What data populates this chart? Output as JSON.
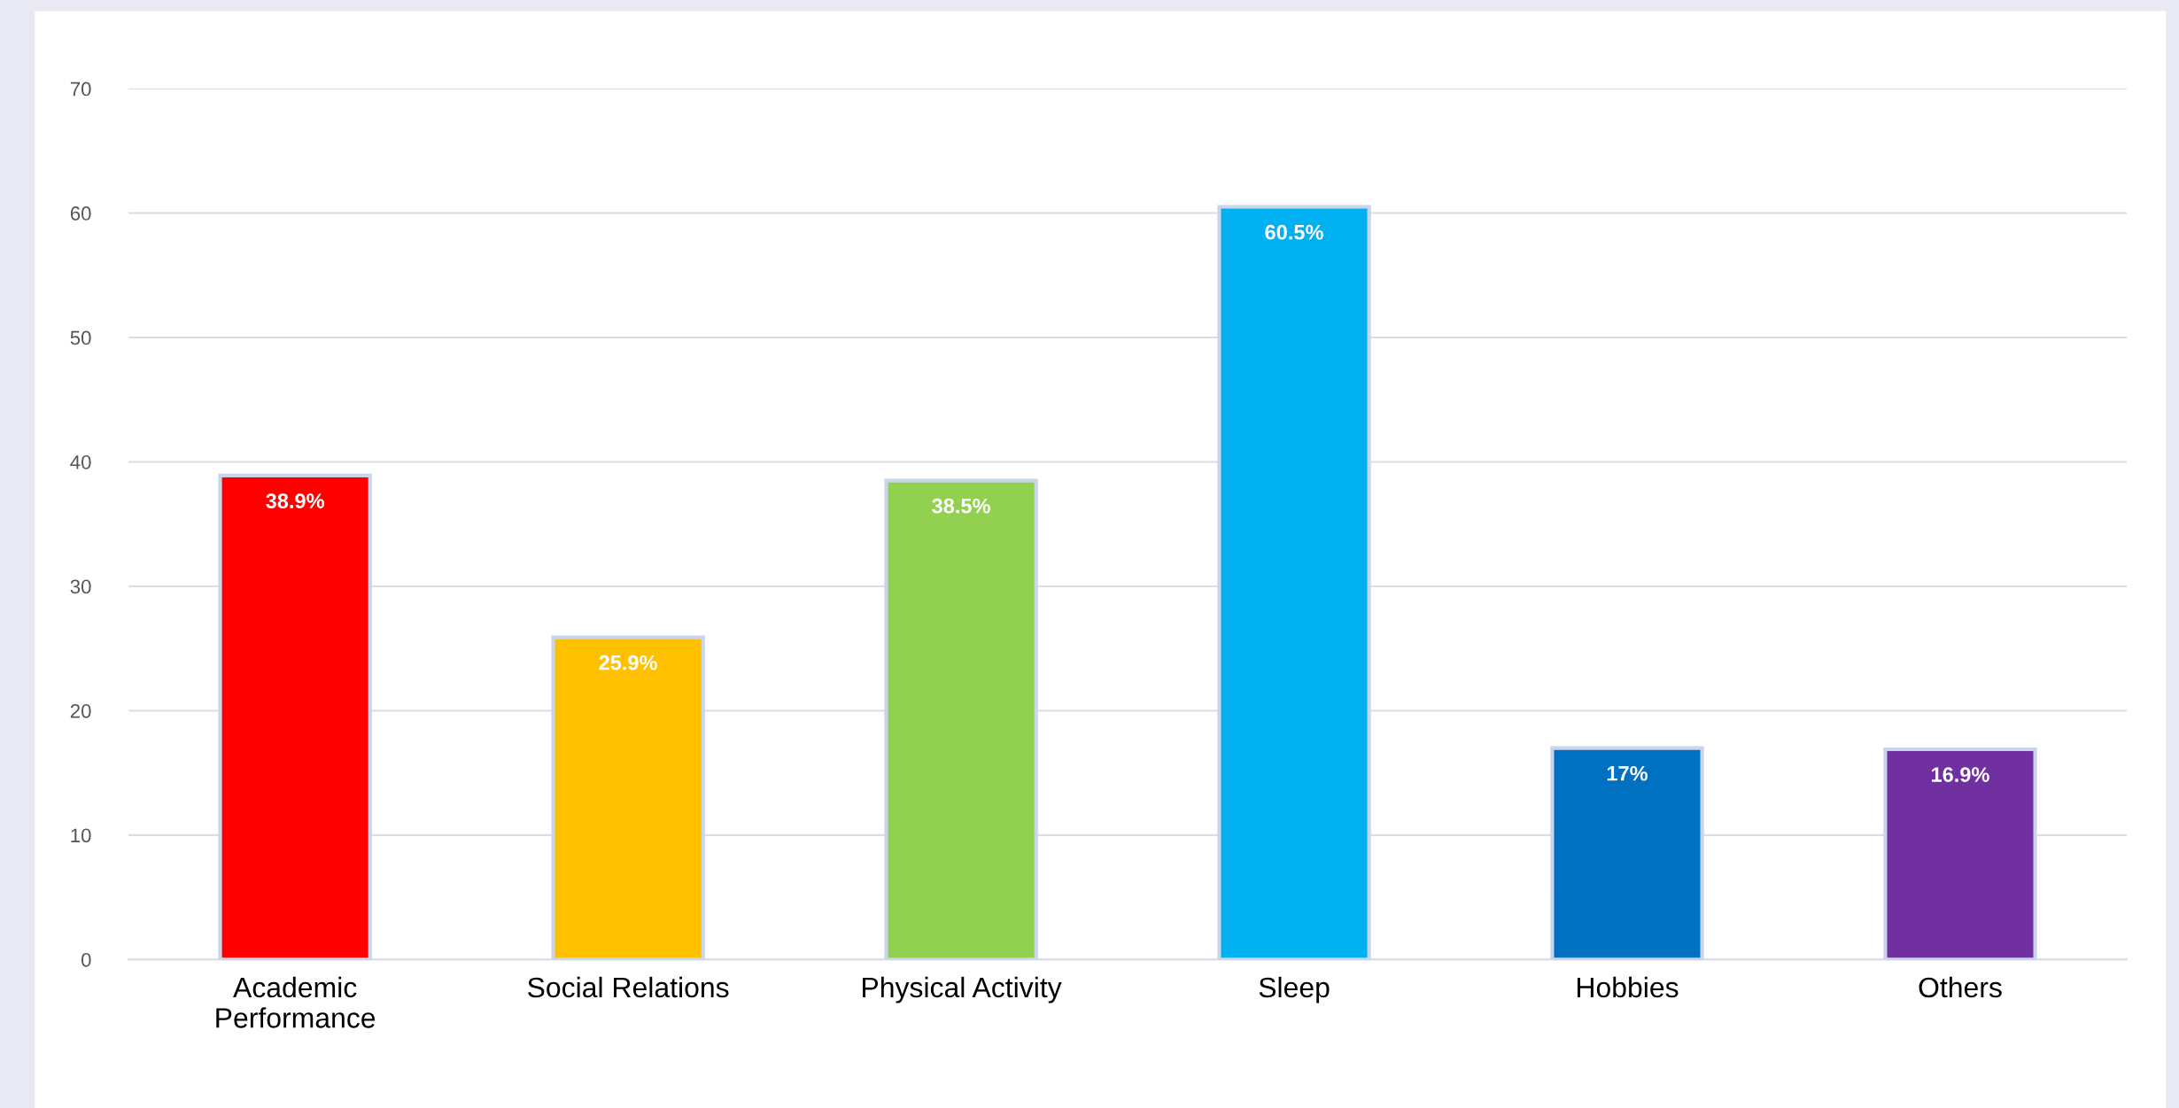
{
  "chart_data": {
    "type": "bar",
    "categories": [
      "Academic Performance",
      "Social Relations",
      "Physical Activity",
      "Sleep",
      "Hobbies",
      "Others"
    ],
    "values": [
      38.9,
      25.9,
      38.5,
      60.5,
      17,
      16.9
    ],
    "colors": [
      "#ff0000",
      "#ffc000",
      "#92d050",
      "#00b0f0",
      "#0070c0",
      "#7030a0"
    ],
    "value_labels": [
      "38.9%",
      "25.9%",
      "38.5%",
      "60.5%",
      "17%",
      "16.9%"
    ],
    "ylim": [
      0,
      70
    ],
    "yticks": [
      0,
      10,
      20,
      30,
      40,
      50,
      60,
      70
    ],
    "grid": "y",
    "legend": false
  }
}
